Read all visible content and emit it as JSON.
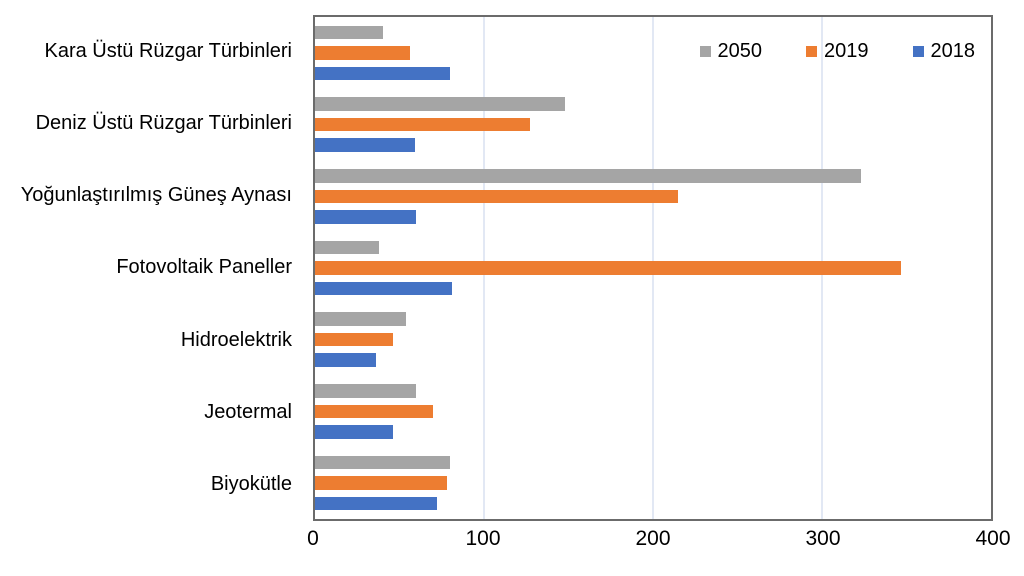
{
  "chart_data": {
    "type": "bar",
    "orientation": "horizontal",
    "title": "",
    "xlabel": "",
    "ylabel": "",
    "categories": [
      "Kara Üstü Rüzgar Türbinleri",
      "Deniz Üstü Rüzgar Türbinleri",
      "Yoğunlaştırılmış Güneş Aynası",
      "Fotovoltaik Paneller",
      "Hidroelektrik",
      "Jeotermal",
      "Biyokütle"
    ],
    "series": [
      {
        "name": "2050",
        "color": "#A5A5A5",
        "values": [
          40,
          148,
          323,
          38,
          54,
          60,
          80
        ]
      },
      {
        "name": "2019",
        "color": "#ED7D31",
        "values": [
          56,
          127,
          215,
          347,
          46,
          70,
          78
        ]
      },
      {
        "name": "2018",
        "color": "#4472C4",
        "values": [
          80,
          59,
          60,
          81,
          36,
          46,
          72
        ]
      }
    ],
    "xlim": [
      0,
      400
    ],
    "x_ticks": [
      0,
      100,
      200,
      300,
      400
    ],
    "grid": true,
    "legend_position": "top-right"
  },
  "colors": {
    "gridline": "#e2e8f4",
    "plot_border": "#6b6b6b",
    "text": "#000000",
    "background": "#ffffff"
  }
}
